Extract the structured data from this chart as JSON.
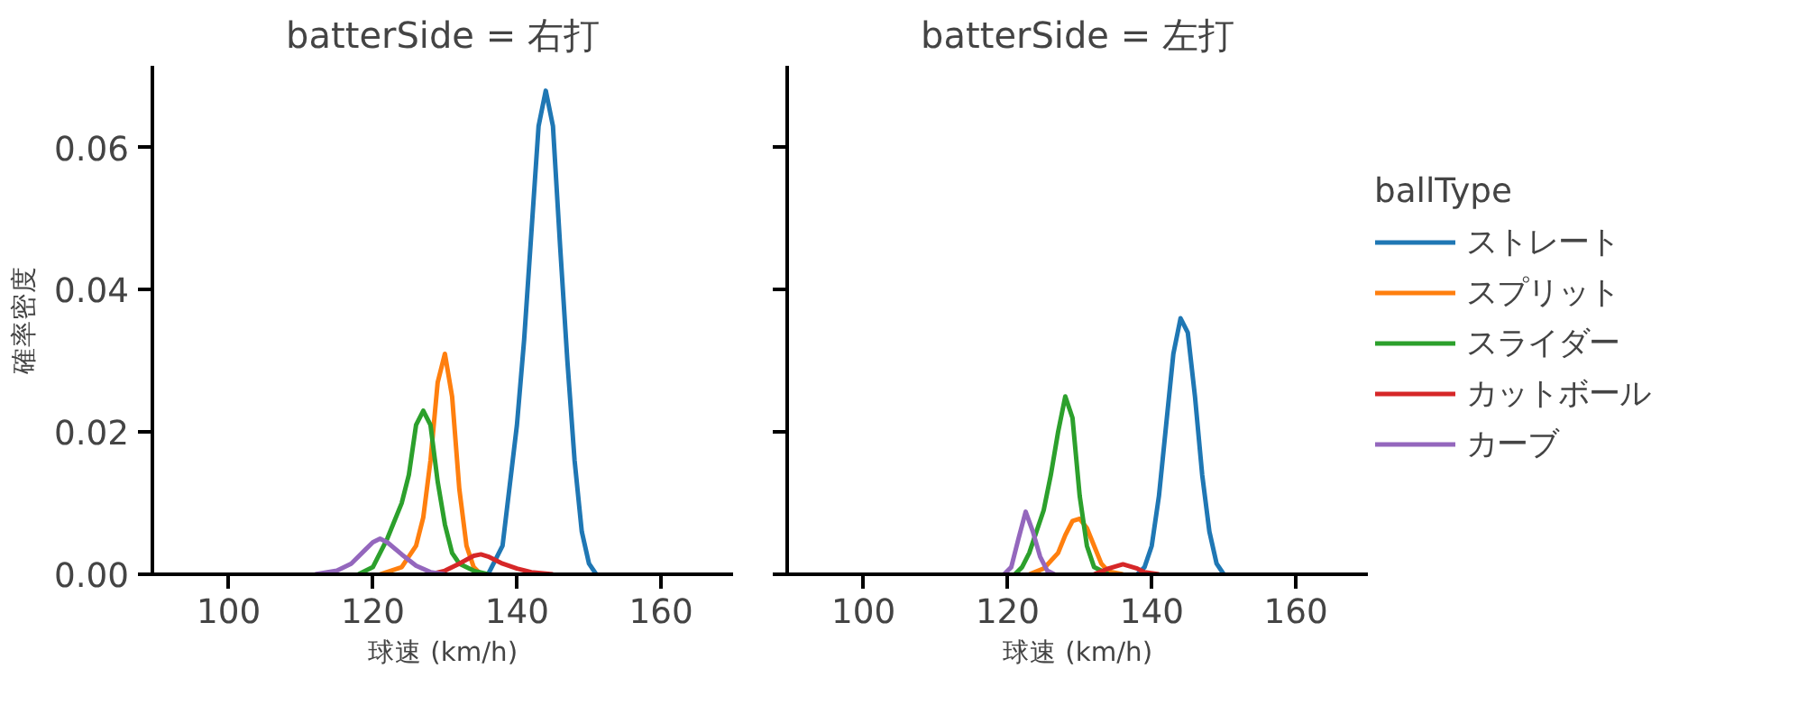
{
  "chart_data": [
    {
      "type": "line",
      "title": "batterSide = 右打",
      "xlabel": "球速 (km/h)",
      "ylabel": "確率密度",
      "xlim": [
        89.4,
        170
      ],
      "ylim": [
        0,
        0.0715
      ],
      "xticks": [
        100,
        120,
        140,
        160
      ],
      "yticks": [
        {
          "value": 0,
          "label": "0.00"
        },
        {
          "value": 0.02,
          "label": "0.02"
        },
        {
          "value": 0.04,
          "label": "0.04"
        },
        {
          "value": 0.06,
          "label": "0.06"
        }
      ],
      "grid": false,
      "legend": false,
      "series": [
        {
          "color": "#1f77b4",
          "x": [
            136,
            138,
            140,
            141,
            142,
            143,
            144,
            145,
            146,
            147,
            148,
            149,
            150,
            151
          ],
          "values": [
            0,
            0.004,
            0.021,
            0.033,
            0.048,
            0.063,
            0.068,
            0.063,
            0.046,
            0.03,
            0.016,
            0.006,
            0.0015,
            0
          ]
        },
        {
          "color": "#ff7f0e",
          "x": [
            121,
            124,
            126,
            127,
            128,
            129,
            130,
            131,
            132,
            133,
            134,
            135
          ],
          "values": [
            0,
            0.001,
            0.004,
            0.008,
            0.016,
            0.027,
            0.031,
            0.025,
            0.012,
            0.004,
            0.001,
            0
          ]
        },
        {
          "color": "#2ca02c",
          "x": [
            118,
            120,
            122,
            124,
            125,
            126,
            127,
            128,
            129,
            130,
            131,
            132,
            134,
            136
          ],
          "values": [
            0,
            0.001,
            0.005,
            0.01,
            0.014,
            0.021,
            0.023,
            0.021,
            0.013,
            0.007,
            0.003,
            0.0015,
            0.0005,
            0
          ]
        },
        {
          "color": "#d62728",
          "x": [
            128,
            130,
            132,
            134,
            135,
            136,
            138,
            140,
            142,
            145
          ],
          "values": [
            0,
            0.0005,
            0.0015,
            0.0026,
            0.0028,
            0.0025,
            0.0015,
            0.0008,
            0.0003,
            0
          ]
        },
        {
          "color": "#9467bd",
          "x": [
            112,
            115,
            117,
            119,
            120,
            121,
            122,
            124,
            126,
            128,
            130
          ],
          "values": [
            0,
            0.0005,
            0.0015,
            0.0035,
            0.0045,
            0.005,
            0.0045,
            0.0028,
            0.0012,
            0.0003,
            0
          ]
        }
      ]
    },
    {
      "type": "line",
      "title": "batterSide = 左打",
      "xlabel": "球速 (km/h)",
      "legend_title": "ballType",
      "xlim": [
        89.4,
        170
      ],
      "ylim": [
        0,
        0.0715
      ],
      "xticks": [
        100,
        120,
        140,
        160
      ],
      "yticks": [
        0,
        0.02,
        0.04,
        0.06
      ],
      "tick_labels": "x",
      "grid": false,
      "legend": "right",
      "series": [
        {
          "name": "ストレート",
          "color": "#1f77b4",
          "x": [
            138,
            139,
            140,
            141,
            142,
            143,
            144,
            145,
            146,
            147,
            148,
            149,
            150
          ],
          "values": [
            0,
            0.001,
            0.004,
            0.011,
            0.021,
            0.031,
            0.036,
            0.034,
            0.025,
            0.014,
            0.006,
            0.0015,
            0
          ]
        },
        {
          "name": "スプリット",
          "color": "#ff7f0e",
          "x": [
            123,
            125,
            127,
            128,
            129,
            130,
            131,
            132,
            133,
            134,
            136
          ],
          "values": [
            0,
            0.0008,
            0.003,
            0.0055,
            0.0075,
            0.0078,
            0.0065,
            0.004,
            0.0015,
            0.0004,
            0
          ]
        },
        {
          "name": "スライダー",
          "color": "#2ca02c",
          "x": [
            121,
            122,
            123,
            124,
            125,
            126,
            127,
            128,
            129,
            130,
            131,
            132,
            134
          ],
          "values": [
            0,
            0.001,
            0.003,
            0.006,
            0.009,
            0.014,
            0.02,
            0.025,
            0.022,
            0.011,
            0.004,
            0.001,
            0
          ]
        },
        {
          "name": "カットボール",
          "color": "#d62728",
          "x": [
            132,
            134,
            136,
            138,
            139,
            141
          ],
          "values": [
            0,
            0.0008,
            0.0014,
            0.0008,
            0.0003,
            0
          ]
        },
        {
          "name": "カーブ",
          "color": "#9467bd",
          "x": [
            119.5,
            120.5,
            121.5,
            122.5,
            123.5,
            124.5,
            125.5,
            126.5
          ],
          "values": [
            0,
            0.001,
            0.005,
            0.0088,
            0.006,
            0.0025,
            0.0005,
            0
          ]
        }
      ]
    }
  ]
}
